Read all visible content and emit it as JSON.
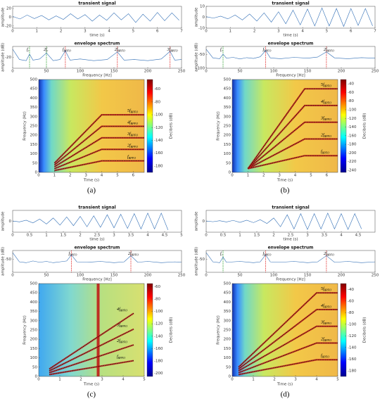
{
  "captions": [
    "(a)",
    "(b)",
    "(c)",
    "(d)"
  ],
  "chart_data": [
    {
      "type": "line",
      "title": "transient signal",
      "xlabel": "time (s)",
      "ylabel": "amplitude",
      "color": "#2f6db5",
      "x": [
        0,
        0.3,
        0.6,
        0.9,
        1.2,
        1.5,
        1.8,
        2.1,
        2.4,
        2.7,
        3,
        3.3,
        3.6,
        3.9,
        4.2,
        4.5,
        4.8,
        5.1,
        5.4,
        5.7,
        6,
        6.3,
        6.6,
        6.9
      ],
      "values": [
        2,
        -4,
        5,
        -3,
        4,
        -6,
        3,
        -5,
        8,
        -4,
        6,
        -9,
        5,
        -7,
        10,
        -6,
        8,
        -12,
        7,
        -9,
        11,
        -8,
        10,
        -7
      ],
      "xlim": [
        0,
        7
      ],
      "xticks": [
        0,
        1,
        2,
        3,
        4,
        5,
        6,
        7
      ],
      "ylim": [
        -25,
        25
      ],
      "yticks": [
        -20,
        0,
        20
      ]
    },
    {
      "type": "line",
      "title": "envelope spectrum",
      "xlabel": "Frequency [Hz]",
      "ylabel": "amplitude (dB)",
      "color": "#2f6db5",
      "x": [
        0,
        10,
        20,
        25,
        30,
        40,
        50,
        60,
        70,
        78,
        85,
        100,
        120,
        140,
        155,
        165,
        180,
        200,
        220,
        233,
        240,
        250
      ],
      "values": [
        -5,
        -24,
        -26,
        -14,
        -25,
        -23,
        -12,
        -26,
        -24,
        -8,
        -25,
        -23,
        -26,
        -24,
        -10,
        -25,
        -24,
        -26,
        -23,
        -9,
        -25,
        -24
      ],
      "xlim": [
        0,
        250
      ],
      "xticks": [
        0,
        50,
        100,
        150,
        200,
        250
      ],
      "ylim": [
        -40,
        0
      ],
      "yticks": [
        -20
      ],
      "annotations": [
        {
          "x": 25,
          "main": "f",
          "sub": "r",
          "color": "#2ca02c"
        },
        {
          "x": 50,
          "main": "2f",
          "sub": "r",
          "color": "#2ca02c"
        },
        {
          "x": 78,
          "main": "f",
          "sub": "BPFO",
          "color": "#e02020"
        },
        {
          "x": 155,
          "main": "2f",
          "sub": "BPFO",
          "color": "#e02020"
        },
        {
          "x": 233,
          "main": "3f",
          "sub": "BPFO",
          "color": "#e02020"
        }
      ]
    },
    {
      "type": "spectrogram",
      "xlabel": "Time (s)",
      "ylabel": "Frequency (Hz)",
      "clabel": "Decibels (dB)",
      "xlim": [
        0,
        6.7
      ],
      "xticks": [
        0,
        1,
        2,
        3,
        4,
        5,
        6
      ],
      "ylim": [
        0,
        500
      ],
      "yticks": [
        0,
        50,
        100,
        150,
        200,
        250,
        300,
        350,
        400,
        450,
        500
      ],
      "clim": [
        -190,
        -45
      ],
      "cticks": [
        -60,
        -80,
        -100,
        -120,
        -140,
        -160,
        -180
      ],
      "series": [
        {
          "label": {
            "main": "f",
            "sub": "BPFO"
          },
          "x": [
            1,
            4,
            6.7
          ],
          "values": [
            10,
            62,
            62
          ]
        },
        {
          "label": {
            "main": "2f",
            "sub": "BPFO"
          },
          "x": [
            1,
            4,
            6.7
          ],
          "values": [
            20,
            124,
            124
          ]
        },
        {
          "label": {
            "main": "3f",
            "sub": "BPFO"
          },
          "x": [
            1,
            4,
            6.7
          ],
          "values": [
            30,
            186,
            186
          ]
        },
        {
          "label": {
            "main": "4f",
            "sub": "BPFO"
          },
          "x": [
            1,
            4,
            6.7
          ],
          "values": [
            40,
            248,
            248
          ]
        },
        {
          "label": {
            "main": "5f",
            "sub": "BPFO"
          },
          "x": [
            1,
            4,
            6.7
          ],
          "values": [
            50,
            310,
            310
          ]
        }
      ]
    },
    {
      "type": "line",
      "title": "transient signal",
      "xlabel": "time (s)",
      "ylabel": "amplitude",
      "color": "#2f6db5",
      "x": [
        0,
        0.3,
        0.6,
        0.9,
        1.2,
        1.5,
        1.8,
        2.1,
        2.4,
        2.7,
        3,
        3.3,
        3.6,
        3.9,
        4.2,
        4.5,
        4.8,
        5.1,
        5.4,
        5.7,
        6,
        6.3,
        6.6,
        6.9
      ],
      "values": [
        0.5,
        -0.8,
        1,
        -1.5,
        2,
        -2.5,
        3,
        -3.5,
        4,
        -4.5,
        5,
        -6,
        6.5,
        -7,
        7.5,
        -8,
        8.5,
        -8,
        8,
        -8.5,
        8,
        -7.5,
        8,
        -8
      ],
      "xlim": [
        0,
        7
      ],
      "xticks": [
        0,
        1,
        2,
        3,
        4,
        5,
        6,
        7
      ],
      "ylim": [
        -10,
        10
      ],
      "yticks": [
        -10,
        0,
        10
      ]
    },
    {
      "type": "line",
      "title": "envelope spectrum",
      "xlabel": "Frequency [Hz]",
      "ylabel": "amplitude (dB)",
      "color": "#2f6db5",
      "x": [
        0,
        10,
        20,
        25,
        30,
        40,
        50,
        60,
        70,
        80,
        88,
        95,
        110,
        130,
        150,
        165,
        178,
        190,
        210,
        230,
        250
      ],
      "values": [
        -30,
        -62,
        -65,
        -48,
        -63,
        -60,
        -66,
        -61,
        -64,
        -58,
        -35,
        -62,
        -65,
        -60,
        -63,
        -59,
        -40,
        -62,
        -65,
        -61,
        -63
      ],
      "xlim": [
        0,
        250
      ],
      "xticks": [
        0,
        50,
        100,
        150,
        200,
        250
      ],
      "ylim": [
        -100,
        -20
      ],
      "yticks": [
        -100,
        -50
      ],
      "annotations": [
        {
          "x": 25,
          "main": "f",
          "sub": "r",
          "color": "#2ca02c"
        },
        {
          "x": 88,
          "main": "f",
          "sub": "BPFO",
          "color": "#e02020"
        },
        {
          "x": 178,
          "main": "2f",
          "sub": "BPFO",
          "color": "#e02020"
        }
      ]
    },
    {
      "type": "spectrogram",
      "xlabel": "Time (s)",
      "ylabel": "Frequency (Hz)",
      "clabel": "Decibels (dB)",
      "xlim": [
        0,
        6.7
      ],
      "xticks": [
        0,
        1,
        2,
        3,
        4,
        5,
        6
      ],
      "ylim": [
        0,
        500
      ],
      "yticks": [
        0,
        50,
        100,
        150,
        200,
        250,
        300,
        350,
        400,
        450,
        500
      ],
      "clim": [
        -245,
        -30
      ],
      "cticks": [
        -40,
        -60,
        -80,
        -100,
        -120,
        -140,
        -160,
        -180,
        -200,
        -220,
        -240
      ],
      "series": [
        {
          "label": {
            "main": "f",
            "sub": "BPFO"
          },
          "x": [
            1,
            4.6,
            6.7
          ],
          "values": [
            20,
            90,
            90
          ]
        },
        {
          "label": {
            "main": "2f",
            "sub": "BPFO"
          },
          "x": [
            1,
            4.6,
            6.7
          ],
          "values": [
            20,
            180,
            180
          ]
        },
        {
          "label": {
            "main": "3f",
            "sub": "BPFO"
          },
          "x": [
            1,
            4.6,
            6.7
          ],
          "values": [
            20,
            270,
            270
          ]
        },
        {
          "label": {
            "main": "4f",
            "sub": "BPFO"
          },
          "x": [
            1,
            4.6,
            6.7
          ],
          "values": [
            20,
            360,
            360
          ]
        },
        {
          "label": {
            "main": "5f",
            "sub": "BPFO"
          },
          "x": [
            1,
            4.6,
            6.7
          ],
          "values": [
            20,
            450,
            450
          ]
        }
      ]
    },
    {
      "type": "line",
      "title": "transient signal",
      "xlabel": "time (s)",
      "ylabel": "amplitude",
      "color": "#2f6db5",
      "x": [
        0,
        0.2,
        0.4,
        0.6,
        0.8,
        1,
        1.2,
        1.4,
        1.6,
        1.8,
        2,
        2.2,
        2.4,
        2.6,
        2.8,
        3,
        3.2,
        3.4,
        3.6,
        3.8,
        4,
        4.2,
        4.4,
        4.6
      ],
      "values": [
        0.3,
        -0.5,
        1,
        -1.5,
        2,
        -2.5,
        3,
        -3.5,
        4,
        -4,
        4.5,
        -5,
        5,
        -5.5,
        6,
        -6,
        6.5,
        -6.5,
        7,
        -7,
        7.5,
        -7,
        7.5,
        -8
      ],
      "xlim": [
        0,
        5
      ],
      "xticks": [
        0,
        0.5,
        1,
        1.5,
        2,
        2.5,
        3,
        3.5,
        4,
        4.5,
        5
      ],
      "ylim": [
        -10,
        10
      ],
      "yticks": [
        0
      ]
    },
    {
      "type": "line",
      "title": "envelope spectrum",
      "xlabel": "Frequency [Hz]",
      "ylabel": "amplitude (dB)",
      "color": "#2f6db5",
      "x": [
        0,
        10,
        20,
        30,
        40,
        50,
        60,
        70,
        80,
        87,
        95,
        110,
        130,
        150,
        165,
        175,
        185,
        200,
        220,
        240,
        250
      ],
      "values": [
        -35,
        -56,
        -58,
        -54,
        -57,
        -55,
        -58,
        -56,
        -54,
        -40,
        -56,
        -57,
        -55,
        -58,
        -56,
        -42,
        -57,
        -55,
        -58,
        -56,
        -57
      ],
      "xlim": [
        0,
        250
      ],
      "xticks": [
        0,
        50,
        100,
        150,
        200,
        250
      ],
      "ylim": [
        -80,
        -30
      ],
      "yticks": [
        -50
      ],
      "annotations": [
        {
          "x": 87,
          "main": "f",
          "sub": "BPFO",
          "color": "#e02020"
        },
        {
          "x": 175,
          "main": "2f",
          "sub": "BPFO",
          "color": "#e02020"
        }
      ]
    },
    {
      "type": "spectrogram",
      "xlabel": "Time (s)",
      "ylabel": "Frequency (Hz)",
      "clabel": "Decibels (dB)",
      "xlim": [
        0,
        5
      ],
      "xticks": [
        0,
        1,
        2,
        3,
        4,
        5
      ],
      "ylim": [
        0,
        500
      ],
      "yticks": [
        0,
        50,
        100,
        150,
        200,
        250,
        300,
        350,
        400,
        450,
        500
      ],
      "clim": [
        -205,
        -55
      ],
      "cticks": [
        -60,
        -80,
        -100,
        -120,
        -140,
        -160,
        -180,
        -200
      ],
      "series": [
        {
          "label": {
            "main": "f",
            "sub": "BPFO"
          },
          "x": [
            0.5,
            4.5
          ],
          "values": [
            10,
            85
          ]
        },
        {
          "label": {
            "main": "2f",
            "sub": "BPFO"
          },
          "x": [
            0.5,
            4.5
          ],
          "values": [
            20,
            170
          ]
        },
        {
          "label": {
            "main": "3f",
            "sub": "BPFO"
          },
          "x": [
            0.5,
            4.5
          ],
          "values": [
            30,
            255
          ]
        },
        {
          "label": {
            "main": "4f",
            "sub": "BPFO"
          },
          "x": [
            0.5,
            4.5
          ],
          "values": [
            40,
            340
          ]
        }
      ]
    },
    {
      "type": "line",
      "title": "transient signal",
      "xlabel": "time (s)",
      "ylabel": "amplitude",
      "color": "#2f6db5",
      "x": [
        0,
        0.2,
        0.4,
        0.6,
        0.8,
        1,
        1.2,
        1.4,
        1.6,
        1.8,
        2,
        2.2,
        2.4,
        2.6,
        2.8,
        3,
        3.2,
        3.4,
        3.6,
        3.8,
        4,
        4.2,
        4.4,
        4.6
      ],
      "values": [
        0.3,
        -0.4,
        0.5,
        -0.6,
        0.8,
        -1,
        1,
        -1.2,
        1.5,
        -2,
        3,
        -5,
        6,
        -7,
        7,
        -7.5,
        7,
        -7,
        7.5,
        -7,
        7,
        -7.5,
        7,
        -7
      ],
      "xlim": [
        0,
        5
      ],
      "xticks": [
        0,
        0.5,
        1,
        1.5,
        2,
        2.5,
        3,
        3.5,
        4,
        4.5
      ],
      "ylim": [
        -10,
        10
      ],
      "yticks": [
        0
      ]
    },
    {
      "type": "line",
      "title": "envelope spectrum",
      "xlabel": "Frequency [Hz]",
      "ylabel": "amplitude (dB)",
      "color": "#2f6db5",
      "x": [
        0,
        10,
        20,
        25,
        30,
        50,
        70,
        80,
        88,
        95,
        110,
        130,
        150,
        165,
        178,
        190,
        210,
        230,
        250
      ],
      "values": [
        -35,
        -56,
        -58,
        -45,
        -57,
        -55,
        -58,
        -56,
        -40,
        -56,
        -57,
        -55,
        -58,
        -56,
        -42,
        -57,
        -55,
        -58,
        -56
      ],
      "xlim": [
        0,
        250
      ],
      "xticks": [
        0,
        50,
        100,
        150,
        200,
        250
      ],
      "ylim": [
        -80,
        -30
      ],
      "yticks": [
        -50
      ],
      "annotations": [
        {
          "x": 25,
          "main": "f",
          "sub": "r",
          "color": "#2ca02c"
        },
        {
          "x": 88,
          "main": "f",
          "sub": "BPFO",
          "color": "#e02020"
        },
        {
          "x": 178,
          "main": "2f",
          "sub": "BPFO",
          "color": "#e02020"
        }
      ]
    },
    {
      "type": "spectrogram",
      "xlabel": "Time (s)",
      "ylabel": "Frequency (Hz)",
      "clabel": "Decibels (dB)",
      "xlim": [
        0,
        5
      ],
      "xticks": [
        0,
        1,
        2,
        3,
        4,
        5
      ],
      "ylim": [
        0,
        500
      ],
      "yticks": [
        0,
        50,
        100,
        150,
        200,
        250,
        300,
        350,
        400,
        450,
        500
      ],
      "clim": [
        -190,
        -30
      ],
      "cticks": [
        -40,
        -60,
        -80,
        -100,
        -120,
        -140,
        -160,
        -180
      ],
      "series": [
        {
          "label": {
            "main": "f",
            "sub": "BPFO"
          },
          "x": [
            0.3,
            4,
            5
          ],
          "values": [
            10,
            90,
            90
          ]
        },
        {
          "label": {
            "main": "2f",
            "sub": "BPFO"
          },
          "x": [
            0.3,
            4,
            5
          ],
          "values": [
            20,
            180,
            180
          ]
        },
        {
          "label": {
            "main": "3f",
            "sub": "BPFO"
          },
          "x": [
            0.3,
            4,
            5
          ],
          "values": [
            30,
            270,
            270
          ]
        },
        {
          "label": {
            "main": "4f",
            "sub": "BPFO"
          },
          "x": [
            0.3,
            4,
            5
          ],
          "values": [
            40,
            360,
            360
          ]
        },
        {
          "label": {
            "main": "5f",
            "sub": "BPFO"
          },
          "x": [
            0.3,
            4,
            5
          ],
          "values": [
            50,
            450,
            450
          ]
        }
      ]
    }
  ]
}
